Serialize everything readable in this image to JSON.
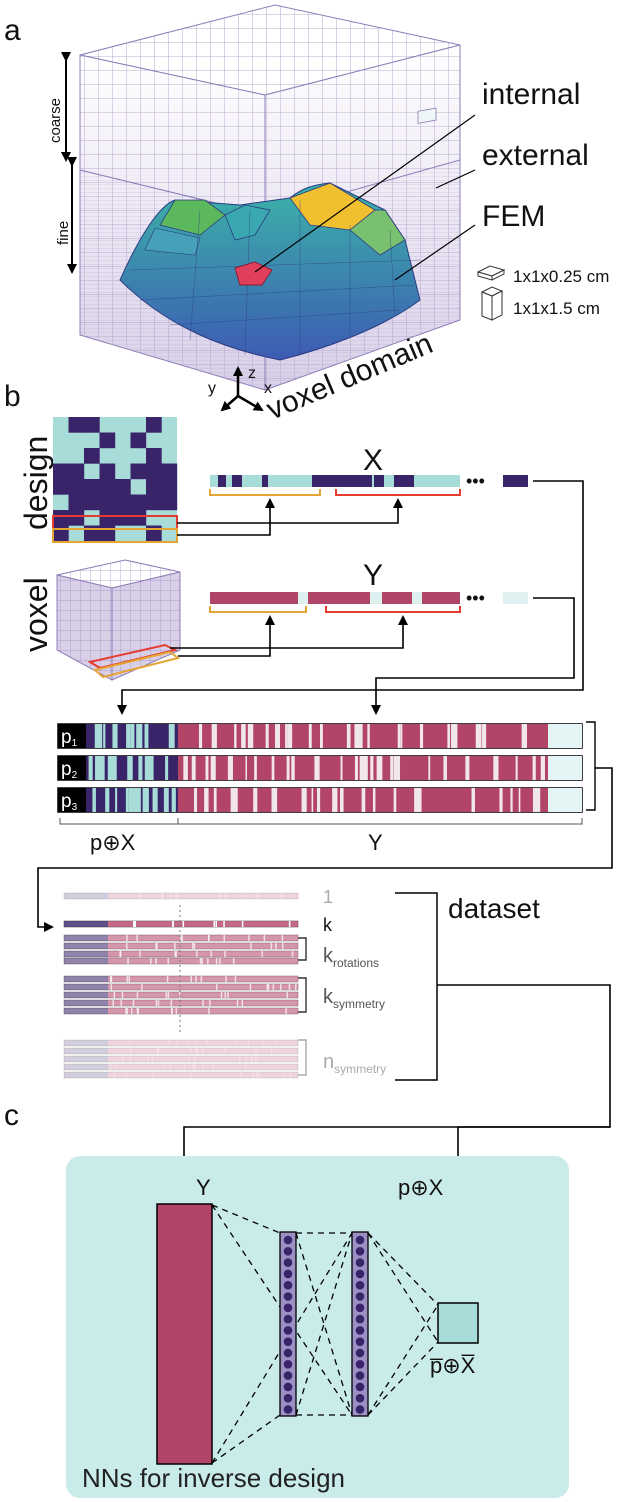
{
  "panels": {
    "a": "a",
    "b": "b",
    "c": "c"
  },
  "panel_a": {
    "axis_coarse": "coarse",
    "axis_fine": "fine",
    "label_internal": "internal",
    "label_external": "external",
    "label_fem": "FEM",
    "legend_small": "1x1x0.25 cm",
    "legend_large": "1x1x1.5 cm",
    "domain_label": "voxel domain",
    "axes": {
      "x": "x",
      "y": "y",
      "z": "z"
    }
  },
  "panel_b": {
    "design_label": "design",
    "voxel_label": "voxel",
    "x_label": "X",
    "y_label": "Y",
    "ellipsis": "•••",
    "rows": [
      {
        "p": "p",
        "sub": "1"
      },
      {
        "p": "p",
        "sub": "2"
      },
      {
        "p": "p",
        "sub": "3"
      }
    ],
    "bottom_pX": "p⊕X",
    "bottom_Y": "Y",
    "dataset": {
      "title": "dataset",
      "one": "1",
      "k": "k",
      "k_rot_main": "k",
      "k_rot_sub": "rotations",
      "k_sym_main": "k",
      "k_sym_sub": "symmetry",
      "n_sym_main": "n",
      "n_sym_sub": "symmetry"
    }
  },
  "panel_c": {
    "input_label": "Y",
    "pX_label": "p⊕X",
    "output_label": "p̅⊕X̅",
    "caption": "NNs for inverse design"
  },
  "colors": {
    "teal": "#a8dcd8",
    "navy": "#3a2469",
    "crimson": "#b24468",
    "panel_bg": "#c9ecea",
    "orange": "#e5a534",
    "red": "#e53b30"
  }
}
